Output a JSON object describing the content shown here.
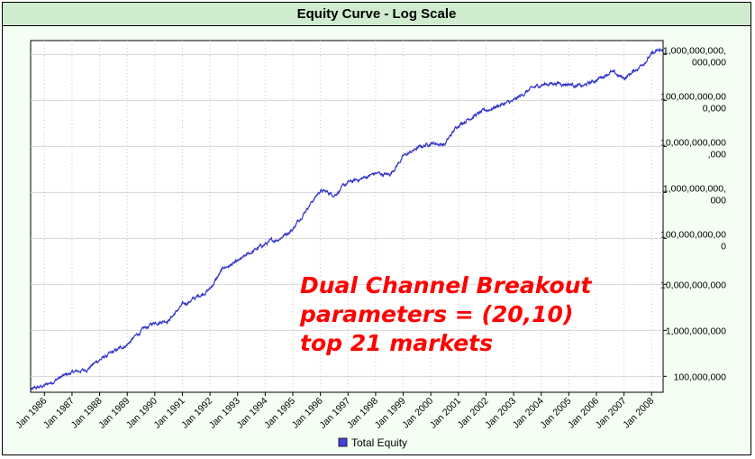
{
  "chart_data": {
    "type": "line",
    "title": "Equity Curve - Log Scale",
    "xlabel": "",
    "ylabel": "",
    "y_scale": "log",
    "ylim": [
      45000000,
      2000000000000000
    ],
    "xlim": [
      "1985-07",
      "2008-06"
    ],
    "x_tick_labels": [
      "Jan 1986",
      "Jan 1987",
      "Jan 1988",
      "Jan 1989",
      "Jan 1990",
      "Jan 1991",
      "Jan 1992",
      "Jan 1993",
      "Jan 1994",
      "Jan 1995",
      "Jan 1996",
      "Jan 1997",
      "Jan 1998",
      "Jan 1999",
      "Jan 2000",
      "Jan 2001",
      "Jan 2002",
      "Jan 2003",
      "Jan 2004",
      "Jan 2005",
      "Jan 2006",
      "Jan 2007",
      "Jan 2008"
    ],
    "y_ticks": [
      {
        "value": 100000000,
        "label": [
          "100,000,000"
        ]
      },
      {
        "value": 1000000000,
        "label": [
          "1,000,000,000"
        ]
      },
      {
        "value": 10000000000,
        "label": [
          "10,000,000,000"
        ]
      },
      {
        "value": 100000000000,
        "label": [
          "100,000,000,00",
          "0"
        ]
      },
      {
        "value": 1000000000000,
        "label": [
          "1,000,000,000,",
          "000"
        ]
      },
      {
        "value": 10000000000000,
        "label": [
          "10,000,000,000",
          ",000"
        ]
      },
      {
        "value": 100000000000000,
        "label": [
          "100,000,000,00",
          "0,000"
        ]
      },
      {
        "value": 1000000000000000,
        "label": [
          "1,000,000,000,",
          "000,000"
        ]
      }
    ],
    "grid": true,
    "legend_position": "bottom",
    "series": [
      {
        "name": "Total Equity",
        "color": "#3333cc",
        "points": [
          [
            "1985-07",
            50000000
          ],
          [
            "1986-01",
            62000000
          ],
          [
            "1986-07",
            90000000
          ],
          [
            "1987-01",
            120000000
          ],
          [
            "1987-07",
            140000000
          ],
          [
            "1988-01",
            230000000
          ],
          [
            "1988-07",
            330000000
          ],
          [
            "1989-01",
            500000000
          ],
          [
            "1989-07",
            950000000
          ],
          [
            "1990-01",
            1500000000
          ],
          [
            "1990-07",
            1700000000
          ],
          [
            "1991-01",
            3500000000
          ],
          [
            "1991-07",
            5200000000
          ],
          [
            "1992-01",
            8000000000
          ],
          [
            "1992-07",
            23000000000
          ],
          [
            "1993-01",
            30000000000
          ],
          [
            "1993-07",
            50000000000
          ],
          [
            "1994-01",
            75000000000
          ],
          [
            "1994-07",
            100000000000
          ],
          [
            "1995-01",
            160000000000
          ],
          [
            "1995-07",
            450000000000
          ],
          [
            "1996-01",
            1100000000000
          ],
          [
            "1996-07",
            900000000000
          ],
          [
            "1997-01",
            1600000000000
          ],
          [
            "1997-07",
            2000000000000
          ],
          [
            "1998-01",
            2600000000000
          ],
          [
            "1998-07",
            2400000000000
          ],
          [
            "1999-01",
            6000000000000
          ],
          [
            "1999-07",
            9000000000000
          ],
          [
            "2000-01",
            12000000000000
          ],
          [
            "2000-07",
            11000000000000
          ],
          [
            "2001-01",
            30000000000000
          ],
          [
            "2001-07",
            45000000000000
          ],
          [
            "2002-01",
            60000000000000
          ],
          [
            "2002-07",
            80000000000000
          ],
          [
            "2003-01",
            95000000000000
          ],
          [
            "2003-07",
            160000000000000
          ],
          [
            "2004-01",
            220000000000000
          ],
          [
            "2004-07",
            240000000000000
          ],
          [
            "2005-01",
            230000000000000
          ],
          [
            "2005-07",
            200000000000000
          ],
          [
            "2006-01",
            280000000000000
          ],
          [
            "2006-07",
            420000000000000
          ],
          [
            "2007-01",
            300000000000000
          ],
          [
            "2007-07",
            500000000000000
          ],
          [
            "2008-01",
            1000000000000000
          ],
          [
            "2008-06",
            1300000000000000
          ]
        ]
      }
    ],
    "annotation": [
      "Dual Channel Breakout",
      "parameters = (20,10)",
      "top 21 markets"
    ]
  }
}
